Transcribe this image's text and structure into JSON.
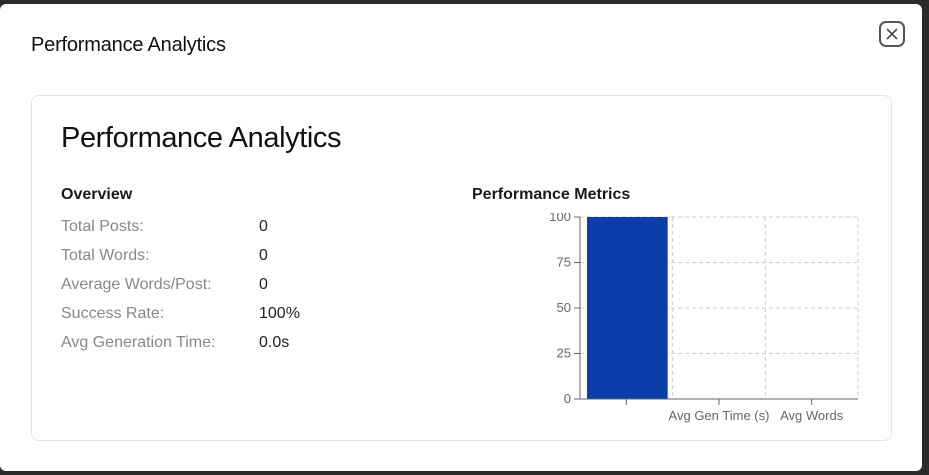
{
  "modal": {
    "title": "Performance Analytics"
  },
  "card": {
    "title": "Performance Analytics",
    "overview": {
      "heading": "Overview",
      "stats": [
        {
          "label": "Total Posts:",
          "value": "0"
        },
        {
          "label": "Total Words:",
          "value": "0"
        },
        {
          "label": "Average Words/Post:",
          "value": "0"
        },
        {
          "label": "Success Rate:",
          "value": "100%"
        },
        {
          "label": "Avg Generation Time:",
          "value": "0.0s"
        }
      ]
    },
    "metrics": {
      "heading": "Performance Metrics"
    }
  },
  "chart_data": {
    "type": "bar",
    "categories": [
      "",
      "Avg Gen Time (s)",
      "Avg Words"
    ],
    "values": [
      100,
      0,
      0
    ],
    "ylim": [
      0,
      100
    ],
    "yticks": [
      0,
      25,
      50,
      75,
      100
    ],
    "grid": true,
    "bar_color": "#0b3ea8"
  }
}
